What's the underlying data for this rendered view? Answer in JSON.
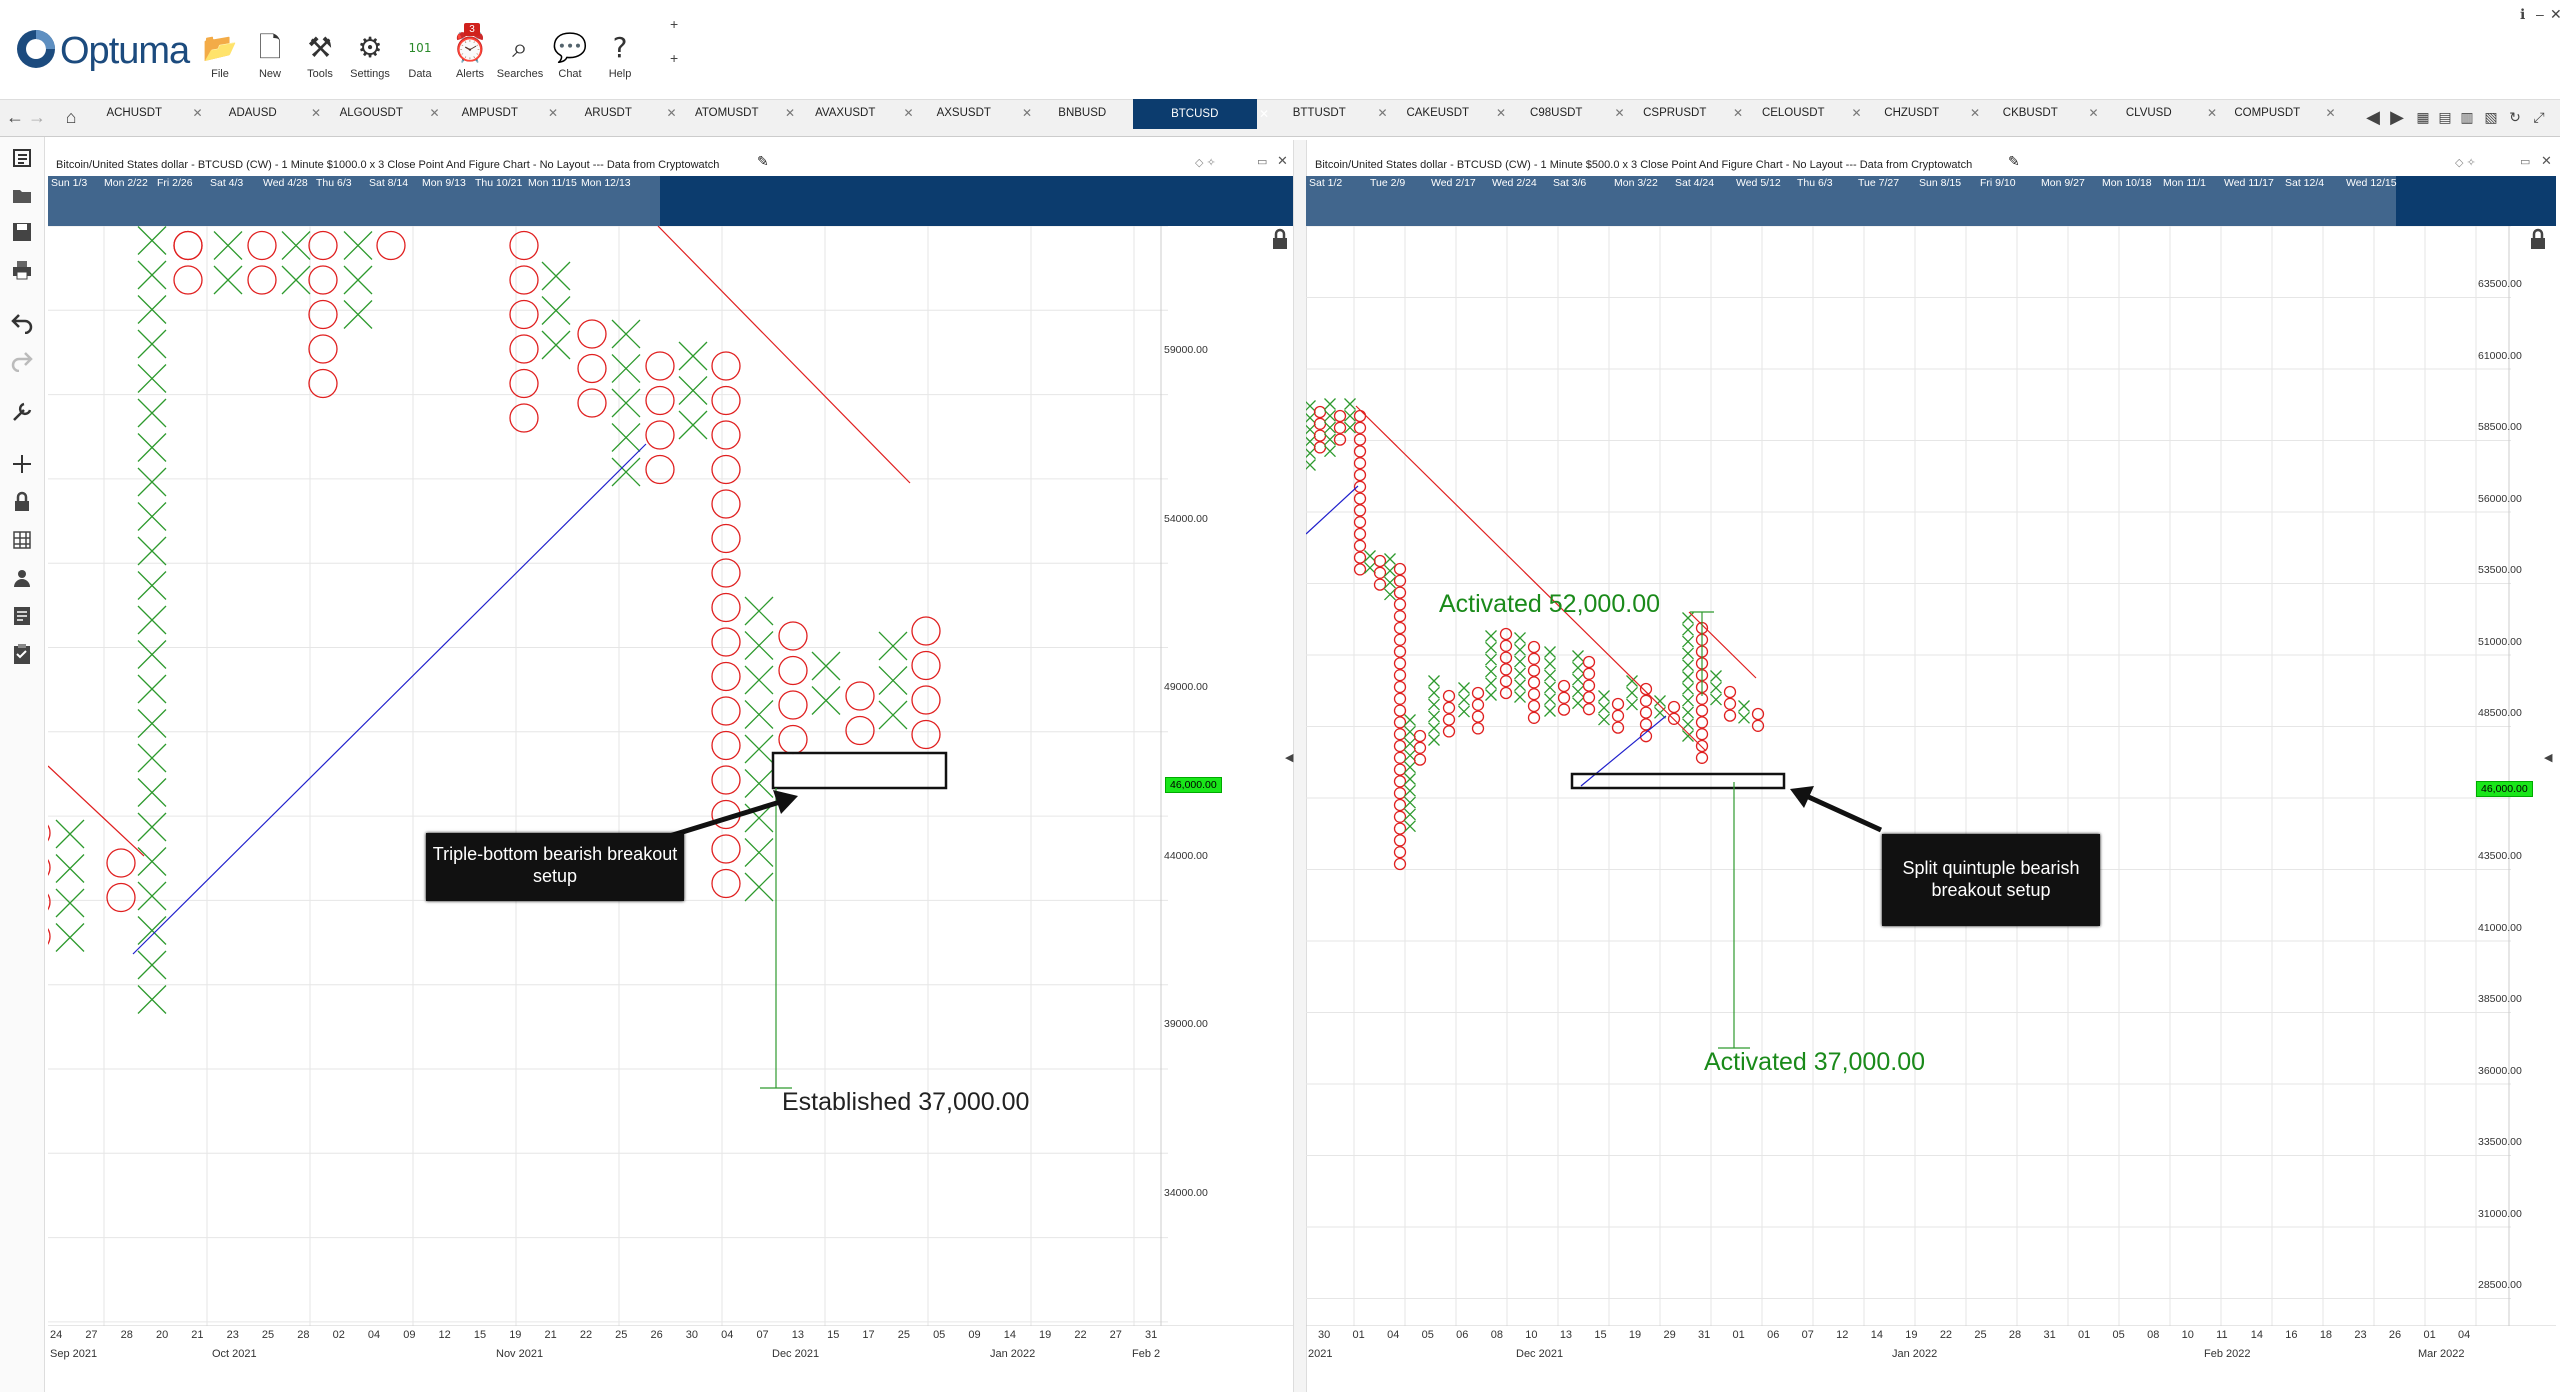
{
  "app": {
    "logo": "Optuma"
  },
  "toolbar": [
    {
      "label": "File",
      "icon": "folder-icon"
    },
    {
      "label": "New",
      "icon": "new-doc-icon"
    },
    {
      "label": "Tools",
      "icon": "tools-icon"
    },
    {
      "label": "Settings",
      "icon": "gear-icon"
    },
    {
      "label": "Data",
      "icon": "binary-data-icon"
    },
    {
      "label": "Alerts",
      "icon": "alarm-clock-icon",
      "badge": "3"
    },
    {
      "label": "Searches",
      "icon": "magnifier-icon"
    },
    {
      "label": "Chat",
      "icon": "chat-icon"
    },
    {
      "label": "Help",
      "icon": "question-icon"
    }
  ],
  "tabs": [
    "ACHUSDT",
    "ADAUSD",
    "ALGOUSDT",
    "AMPUSDT",
    "ARUSDT",
    "ATOMUSDT",
    "AVAXUSDT",
    "AXSUSDT",
    "BNBUSD",
    "BTCUSD",
    "BTTUSDT",
    "CAKEUSDT",
    "C98USDT",
    "CSPRUSDT",
    "CELOUSDT",
    "CHZUSDT",
    "CKBUSDT",
    "CLVUSD",
    "COMPUSDT"
  ],
  "active_tab": "BTCUSD",
  "left_chart": {
    "title": "Bitcoin/United States dollar - BTCUSD (CW) - 1 Minute $1000.0 x 3 Close Point And Figure Chart - No Layout --- Data from Cryptowatch",
    "strip_labels": [
      "Sun 1/3",
      "Mon 2/22",
      "Fri 2/26",
      "Sat 4/3",
      "Wed 4/28",
      "Thu 6/3",
      "Sat 8/14",
      "Mon 9/13",
      "Thu 10/21",
      "Mon 11/15",
      "Mon 12/13"
    ],
    "price_labels": [
      "59000.00",
      "54000.00",
      "49000.00",
      "44000.00",
      "39000.00",
      "34000.00"
    ],
    "current_price": "46,000.00",
    "date_labels": [
      "24",
      "27",
      "28",
      "20",
      "21",
      "23",
      "25",
      "28",
      "02",
      "04",
      "09",
      "12",
      "15",
      "19",
      "21",
      "22",
      "25",
      "26",
      "30",
      "04",
      "07",
      "13",
      "15",
      "17",
      "25",
      "05",
      "09",
      "14",
      "19",
      "22",
      "27",
      "31"
    ],
    "month_labels": [
      "Sep 2021",
      "Oct 2021",
      "Nov 2021",
      "Dec 2021",
      "Jan 2022",
      "Feb 2"
    ],
    "callout": "Triple-bottom bearish breakout setup",
    "annotation": "Established 37,000.00"
  },
  "right_chart": {
    "title": "Bitcoin/United States dollar - BTCUSD (CW) - 1 Minute $500.0 x 3 Close Point And Figure Chart - No Layout --- Data from Cryptowatch",
    "strip_labels": [
      "Sat 1/2",
      "Tue 2/9",
      "Wed 2/17",
      "Wed 2/24",
      "Sat 3/6",
      "Mon 3/22",
      "Sat 4/24",
      "Wed 5/12",
      "Thu 6/3",
      "Tue 7/27",
      "Sun 8/15",
      "Fri 9/10",
      "Mon 9/27",
      "Mon 10/18",
      "Mon 11/1",
      "Wed 11/17",
      "Sat 12/4",
      "Wed 12/15"
    ],
    "price_labels": [
      "63500.00",
      "61000.00",
      "58500.00",
      "56000.00",
      "53500.00",
      "51000.00",
      "48500.00",
      "46,000.00",
      "43500.00",
      "41000.00",
      "38500.00",
      "36000.00",
      "33500.00",
      "31000.00",
      "28500.00"
    ],
    "current_price": "46,000.00",
    "date_labels": [
      "30",
      "01",
      "04",
      "05",
      "06",
      "08",
      "10",
      "13",
      "15",
      "19",
      "29",
      "31",
      "01",
      "06",
      "07",
      "12",
      "14",
      "19",
      "22",
      "25",
      "28",
      "31",
      "01",
      "05",
      "08",
      "10",
      "11",
      "14",
      "16",
      "18",
      "23",
      "26",
      "01",
      "04"
    ],
    "month_labels": [
      "2021",
      "Dec 2021",
      "Jan 2022",
      "Feb 2022",
      "Mar 2022"
    ],
    "callout": "Split quintuple bearish breakout setup",
    "annotation_top": "Activated 52,000.00",
    "annotation_bottom": "Activated 37,000.00"
  },
  "colors": {
    "brand": "#1c4b7e",
    "strip": "#0c3c6e",
    "x_mark": "#2e9a2e",
    "o_mark": "#e02020",
    "trend_down": "#e02020",
    "trend_up": "#2020cc",
    "price_tag": "#19e619",
    "annot_green": "#1a8a1a"
  }
}
